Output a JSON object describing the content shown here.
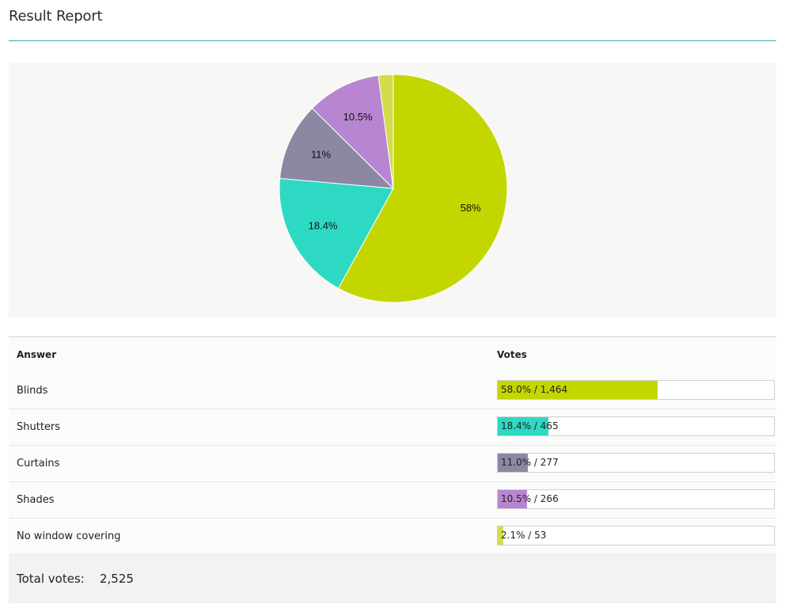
{
  "header": {
    "title": "Result Report"
  },
  "chart_data": {
    "type": "pie",
    "slices": [
      {
        "label": "58%",
        "value": 58.0,
        "color": "#c4d600"
      },
      {
        "label": "18.4%",
        "value": 18.4,
        "color": "#2ed9c3"
      },
      {
        "label": "11%",
        "value": 11.0,
        "color": "#8c87a3"
      },
      {
        "label": "10.5%",
        "value": 10.5,
        "color": "#b886d0"
      },
      {
        "label": "",
        "value": 2.1,
        "color": "#d4dc4a"
      }
    ]
  },
  "table": {
    "answer_header": "Answer",
    "votes_header": "Votes",
    "rows": [
      {
        "answer": "Blinds",
        "fraction": 0.58,
        "color": "#c4d600",
        "votes_text": "58.0% / 1,464"
      },
      {
        "answer": "Shutters",
        "fraction": 0.184,
        "color": "#2ed9c3",
        "votes_text": "18.4% / 465"
      },
      {
        "answer": "Curtains",
        "fraction": 0.11,
        "color": "#8c87a3",
        "votes_text": "11.0% / 277"
      },
      {
        "answer": "Shades",
        "fraction": 0.105,
        "color": "#b886d0",
        "votes_text": "10.5% / 266"
      },
      {
        "answer": "No window covering",
        "fraction": 0.021,
        "color": "#d4dc4a",
        "votes_text": "2.1% / 53"
      }
    ],
    "total_label": "Total votes:",
    "total_value": "2,525"
  }
}
